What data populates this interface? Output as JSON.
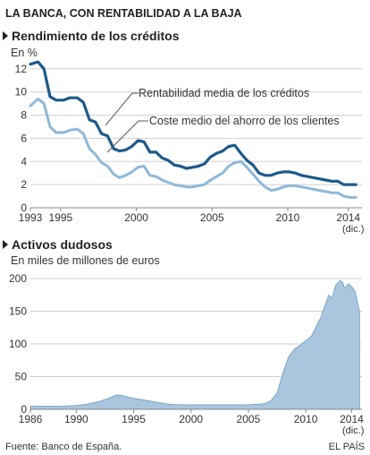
{
  "header": {
    "title": "LA BANCA, CON RENTABILIDAD A LA BAJA"
  },
  "footer": {
    "source": "Fuente: Banco de España.",
    "credit": "EL PAÍS"
  },
  "colors": {
    "dark_series": "#1d5a8a",
    "light_series": "#8fb8d8",
    "area_fill": "#a9c6de",
    "area_stroke": "#6f9cc2",
    "grid": "#cfcfcf",
    "text": "#333333"
  },
  "chart_data": [
    {
      "type": "line",
      "title": "Rendimiento de los créditos",
      "subtitle": "En %",
      "ylim": [
        0,
        14
      ],
      "yticks": [
        "0",
        "2",
        "4",
        "6",
        "8",
        "10",
        "12"
      ],
      "xlim": [
        1993,
        2014.9
      ],
      "xticks": [
        "1993",
        "1995",
        "2000",
        "2005",
        "2010",
        "2014"
      ],
      "x_note": "(dic.)",
      "grid": true,
      "series": [
        {
          "name": "Rentabilidad media de los créditos",
          "x": [
            1993.0,
            1993.5,
            1993.9,
            1994.3,
            1994.7,
            1995.2,
            1995.6,
            1996.1,
            1996.5,
            1996.9,
            1997.3,
            1997.7,
            1998.1,
            1998.5,
            1998.9,
            1999.3,
            1999.7,
            2000.1,
            2000.5,
            2000.9,
            2001.3,
            2001.7,
            2002.1,
            2002.5,
            2002.9,
            2003.3,
            2003.7,
            2004.1,
            2004.5,
            2004.9,
            2005.3,
            2005.7,
            2006.1,
            2006.5,
            2006.9,
            2007.3,
            2007.7,
            2008.1,
            2008.5,
            2008.9,
            2009.3,
            2009.7,
            2010.1,
            2010.5,
            2010.9,
            2011.3,
            2011.7,
            2012.1,
            2012.5,
            2012.9,
            2013.3,
            2013.7,
            2014.1,
            2014.5
          ],
          "values": [
            12.4,
            12.6,
            12.0,
            9.6,
            9.3,
            9.3,
            9.5,
            9.5,
            9.1,
            7.6,
            7.4,
            6.4,
            6.2,
            5.1,
            4.9,
            5.0,
            5.3,
            5.8,
            5.7,
            4.8,
            4.8,
            4.3,
            4.1,
            3.7,
            3.6,
            3.4,
            3.5,
            3.6,
            3.8,
            4.4,
            4.7,
            4.9,
            5.3,
            5.4,
            4.7,
            4.1,
            3.7,
            3.0,
            2.8,
            2.8,
            3.0,
            3.1,
            3.1,
            3.0,
            2.8,
            2.7,
            2.6,
            2.5,
            2.4,
            2.3,
            2.3,
            2.0,
            2.0,
            2.0
          ]
        },
        {
          "name": "Coste medio del ahorro de los clientes",
          "x": [
            1993.0,
            1993.5,
            1993.9,
            1994.3,
            1994.7,
            1995.2,
            1995.6,
            1996.1,
            1996.5,
            1996.9,
            1997.3,
            1997.7,
            1998.1,
            1998.5,
            1998.9,
            1999.3,
            1999.7,
            2000.1,
            2000.5,
            2000.9,
            2001.3,
            2001.7,
            2002.1,
            2002.5,
            2002.9,
            2003.3,
            2003.7,
            2004.1,
            2004.5,
            2004.9,
            2005.3,
            2005.7,
            2006.1,
            2006.5,
            2006.9,
            2007.3,
            2007.7,
            2008.1,
            2008.5,
            2008.9,
            2009.3,
            2009.7,
            2010.1,
            2010.5,
            2010.9,
            2011.3,
            2011.7,
            2012.1,
            2012.5,
            2012.9,
            2013.3,
            2013.7,
            2014.1,
            2014.5
          ],
          "values": [
            8.8,
            9.4,
            9.0,
            7.0,
            6.5,
            6.5,
            6.7,
            6.8,
            6.4,
            5.1,
            4.6,
            3.9,
            3.6,
            2.9,
            2.6,
            2.8,
            3.1,
            3.5,
            3.6,
            2.8,
            2.7,
            2.4,
            2.2,
            2.0,
            1.9,
            1.8,
            1.8,
            1.9,
            2.0,
            2.4,
            2.7,
            3.0,
            3.6,
            3.9,
            4.0,
            3.5,
            2.9,
            2.3,
            1.8,
            1.5,
            1.6,
            1.8,
            1.9,
            1.9,
            1.8,
            1.7,
            1.6,
            1.5,
            1.4,
            1.3,
            1.3,
            1.0,
            0.9,
            0.9
          ]
        }
      ]
    },
    {
      "type": "area",
      "title": "Activos dudosos",
      "subtitle": "En miles de millones de euros",
      "ylim": [
        0,
        200
      ],
      "yticks": [
        "0",
        "50",
        "100",
        "150",
        "200"
      ],
      "xlim": [
        1986,
        2014.9
      ],
      "xticks": [
        "1986",
        "1990",
        "1995",
        "2000",
        "2005",
        "2010",
        "2014"
      ],
      "x_note": "(dic.)",
      "grid": true,
      "series": [
        {
          "name": "",
          "x": [
            1986,
            1987,
            1988,
            1989,
            1990,
            1991,
            1992,
            1993,
            1993.5,
            1994,
            1995,
            1996,
            1997,
            1998,
            1999,
            2000,
            2001,
            2002,
            2003,
            2004,
            2005,
            2006,
            2006.5,
            2007,
            2007.5,
            2008,
            2008.5,
            2009,
            2009.5,
            2010,
            2010.5,
            2011,
            2011.3,
            2011.6,
            2012,
            2012.3,
            2012.6,
            2013,
            2013.2,
            2013.4,
            2013.7,
            2014,
            2014.3,
            2014.5,
            2014.7
          ],
          "values": [
            5,
            5,
            5,
            5,
            6,
            8,
            12,
            18,
            22,
            21,
            17,
            14,
            11,
            8,
            7,
            7,
            7,
            7,
            7,
            7,
            7,
            8,
            9,
            14,
            25,
            55,
            80,
            92,
            98,
            105,
            112,
            130,
            140,
            155,
            175,
            170,
            190,
            197,
            195,
            185,
            192,
            188,
            180,
            165,
            148
          ]
        }
      ]
    }
  ]
}
